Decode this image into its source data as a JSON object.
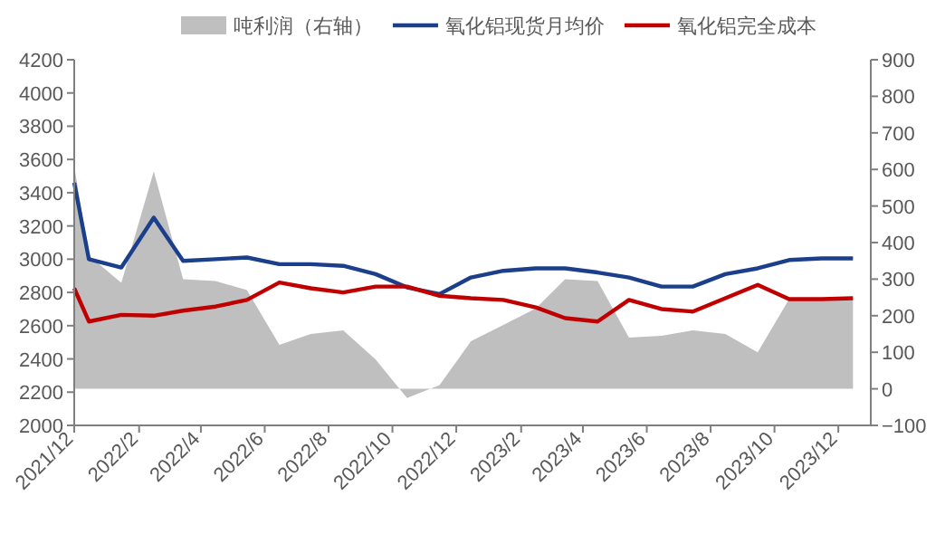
{
  "chart_data": {
    "type": "line",
    "legend": "top",
    "grid": false,
    "x": [
      "2021-12-01",
      "2021-12-15",
      "2022-01-15",
      "2022-02-15",
      "2022-03-15",
      "2022-04-15",
      "2022-05-15",
      "2022-06-15",
      "2022-07-15",
      "2022-08-15",
      "2022-09-15",
      "2022-10-15",
      "2022-11-15",
      "2022-12-15",
      "2023-01-15",
      "2023-02-15",
      "2023-03-15",
      "2023-04-15",
      "2023-05-15",
      "2023-06-15",
      "2023-07-15",
      "2023-08-15",
      "2023-09-15",
      "2023-10-15",
      "2023-11-15",
      "2023-12-15"
    ],
    "xlim": [
      "2021-12-01",
      "2024-01-01"
    ],
    "xticks": [
      {
        "value": "2021-12-01",
        "label": "2021/12"
      },
      {
        "value": "2022-02-01",
        "label": "2022/2"
      },
      {
        "value": "2022-04-01",
        "label": "2022/4"
      },
      {
        "value": "2022-06-01",
        "label": "2022/6"
      },
      {
        "value": "2022-08-01",
        "label": "2022/8"
      },
      {
        "value": "2022-10-01",
        "label": "2022/10"
      },
      {
        "value": "2022-12-01",
        "label": "2022/12"
      },
      {
        "value": "2023-02-01",
        "label": "2023/2"
      },
      {
        "value": "2023-04-01",
        "label": "2023/4"
      },
      {
        "value": "2023-06-01",
        "label": "2023/6"
      },
      {
        "value": "2023-08-01",
        "label": "2023/8"
      },
      {
        "value": "2023-10-01",
        "label": "2023/10"
      },
      {
        "value": "2023-12-01",
        "label": "2023/12"
      }
    ],
    "ylim": [
      2000,
      4200
    ],
    "yticks": [
      2000,
      2200,
      2400,
      2600,
      2800,
      3000,
      3200,
      3400,
      3600,
      3800,
      4000,
      4200
    ],
    "y2lim": [
      -100,
      900
    ],
    "y2ticks": [
      -100,
      0,
      100,
      200,
      300,
      400,
      500,
      600,
      700,
      800,
      900
    ],
    "series": [
      {
        "name": "吨利润（右轴）",
        "type": "area",
        "axis": "y2",
        "color": "#bfbfbf",
        "values": [
          610,
          365,
          290,
          595,
          300,
          295,
          270,
          120,
          150,
          160,
          80,
          -25,
          10,
          130,
          175,
          220,
          300,
          295,
          140,
          145,
          160,
          150,
          100,
          245,
          245,
          245
        ]
      },
      {
        "name": "氧化铝现货月均价",
        "color": "#1b3f8b",
        "values": [
          3460,
          3000,
          2950,
          3250,
          2990,
          3000,
          3010,
          2970,
          2970,
          2960,
          2910,
          2830,
          2790,
          2890,
          2930,
          2945,
          2945,
          2920,
          2890,
          2835,
          2835,
          2910,
          2945,
          2995,
          3005,
          3005
        ]
      },
      {
        "name": "氧化铝完全成本",
        "color": "#c00000",
        "values": [
          2825,
          2625,
          2665,
          2660,
          2690,
          2715,
          2755,
          2860,
          2825,
          2800,
          2835,
          2835,
          2780,
          2765,
          2755,
          2710,
          2645,
          2625,
          2755,
          2700,
          2685,
          2765,
          2845,
          2760,
          2760,
          2765
        ]
      }
    ]
  }
}
